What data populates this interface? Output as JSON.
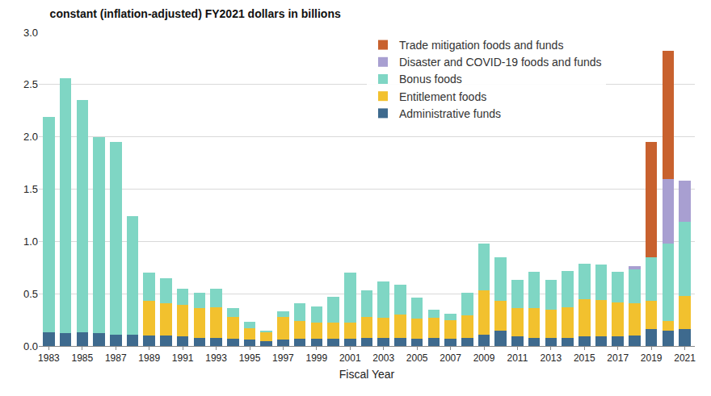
{
  "chart_data": {
    "type": "bar",
    "title": "constant (inflation-adjusted) FY2021 dollars in billions",
    "x_label": "Fiscal Year",
    "stacked": true,
    "grid": true,
    "legend": "upper right",
    "x": [
      1983,
      1984,
      1985,
      1986,
      1987,
      1988,
      1989,
      1990,
      1991,
      1992,
      1993,
      1994,
      1995,
      1996,
      1997,
      1998,
      1999,
      2000,
      2001,
      2002,
      2003,
      2004,
      2005,
      2006,
      2007,
      2008,
      2009,
      2010,
      2011,
      2012,
      2013,
      2014,
      2015,
      2016,
      2017,
      2018,
      2019,
      2020,
      2021
    ],
    "xlim": [
      1982.4,
      2021.6
    ],
    "xticks": [
      1983,
      1985,
      1987,
      1989,
      1991,
      1993,
      1995,
      1997,
      1999,
      2001,
      2003,
      2005,
      2007,
      2009,
      2011,
      2013,
      2015,
      2017,
      2019,
      2021
    ],
    "ylim": [
      0,
      3
    ],
    "yticks": [
      {
        "value": 0,
        "label": "0.0"
      },
      0.5,
      {
        "value": 1,
        "label": "1.0"
      },
      1.5,
      {
        "value": 2,
        "label": "2.0"
      },
      2.5,
      {
        "value": 3,
        "label": "3.0"
      }
    ],
    "series": [
      {
        "name": "Administrative funds",
        "color": "#3e6a8e",
        "values": [
          0.13,
          0.12,
          0.13,
          0.12,
          0.11,
          0.11,
          0.1,
          0.1,
          0.09,
          0.08,
          0.08,
          0.07,
          0.06,
          0.05,
          0.06,
          0.07,
          0.07,
          0.07,
          0.07,
          0.08,
          0.08,
          0.08,
          0.07,
          0.08,
          0.07,
          0.08,
          0.11,
          0.15,
          0.09,
          0.08,
          0.08,
          0.08,
          0.09,
          0.09,
          0.09,
          0.1,
          0.16,
          0.15,
          0.16
        ]
      },
      {
        "name": "Entitlement foods",
        "color": "#f2c12e",
        "values": [
          0,
          0,
          0,
          0,
          0,
          0,
          0.33,
          0.31,
          0.3,
          0.28,
          0.29,
          0.21,
          0.11,
          0.08,
          0.22,
          0.17,
          0.15,
          0.15,
          0.15,
          0.2,
          0.19,
          0.22,
          0.19,
          0.19,
          0.18,
          0.21,
          0.42,
          0.28,
          0.27,
          0.28,
          0.27,
          0.29,
          0.36,
          0.35,
          0.33,
          0.31,
          0.27,
          0.09,
          0.32
        ]
      },
      {
        "name": "Bonus foods",
        "color": "#7fd6c4",
        "values": [
          2.06,
          2.44,
          2.22,
          1.88,
          1.84,
          1.13,
          0.27,
          0.24,
          0.16,
          0.15,
          0.18,
          0.08,
          0.06,
          0.02,
          0.05,
          0.17,
          0.16,
          0.25,
          0.48,
          0.25,
          0.35,
          0.29,
          0.2,
          0.08,
          0.06,
          0.22,
          0.45,
          0.42,
          0.27,
          0.35,
          0.28,
          0.35,
          0.34,
          0.34,
          0.29,
          0.32,
          0.42,
          0.74,
          0.71
        ]
      },
      {
        "name": "Disaster and COVID-19 foods and funds",
        "color": "#a89fd1",
        "values": [
          0,
          0,
          0,
          0,
          0,
          0,
          0,
          0,
          0,
          0,
          0,
          0,
          0,
          0,
          0,
          0,
          0,
          0,
          0,
          0,
          0,
          0,
          0,
          0,
          0,
          0,
          0,
          0,
          0,
          0,
          0,
          0,
          0,
          0,
          0,
          0.03,
          0,
          0.62,
          0.39
        ]
      },
      {
        "name": "Trade mitigation foods and funds",
        "color": "#c8612e",
        "values": [
          0,
          0,
          0,
          0,
          0,
          0,
          0,
          0,
          0,
          0,
          0,
          0,
          0,
          0,
          0,
          0,
          0,
          0,
          0,
          0,
          0,
          0,
          0,
          0,
          0,
          0,
          0,
          0,
          0,
          0,
          0,
          0,
          0,
          0,
          0,
          0,
          1.1,
          1.22,
          0
        ]
      }
    ]
  }
}
